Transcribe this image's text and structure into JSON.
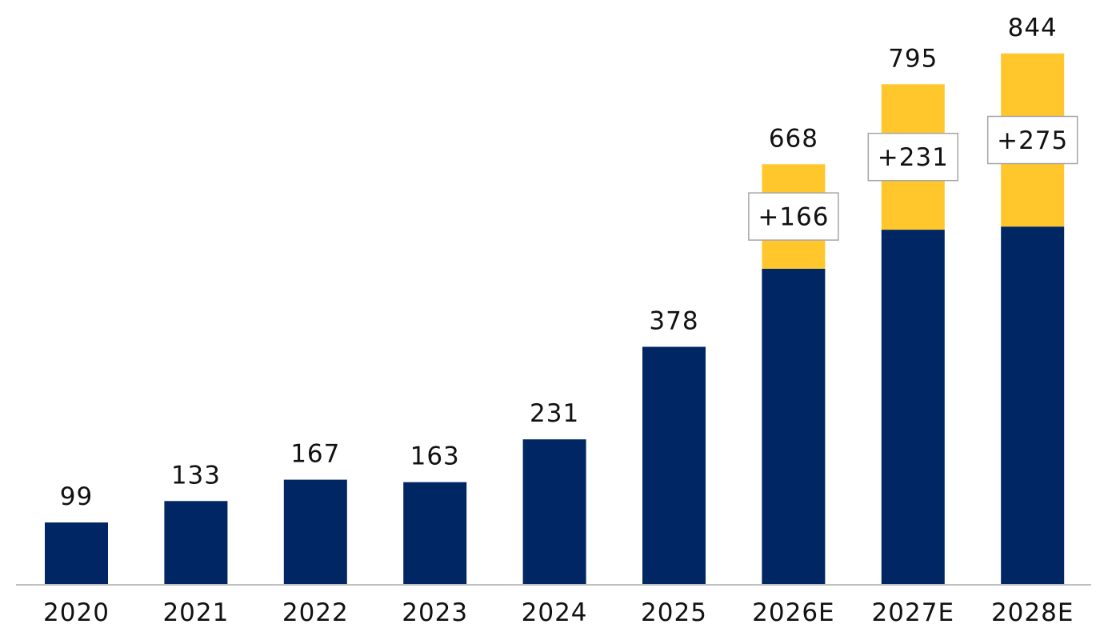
{
  "chart_data": {
    "type": "bar",
    "stacked": true,
    "categories": [
      "2020",
      "2021",
      "2022",
      "2023",
      "2024",
      "2025",
      "2026E",
      "2027E",
      "2028E"
    ],
    "series": [
      {
        "values": [
          99,
          133,
          167,
          163,
          231,
          378,
          502,
          564,
          569
        ],
        "color": "#002663"
      },
      {
        "values": [
          0,
          0,
          0,
          0,
          0,
          0,
          166,
          231,
          275
        ],
        "color": "#FFC72C"
      }
    ],
    "totals": [
      "99",
      "133",
      "167",
      "163",
      "231",
      "378",
      "668",
      "795",
      "844"
    ],
    "increment_labels": [
      "",
      "",
      "",
      "",
      "",
      "",
      "+166",
      "+231",
      "+275"
    ],
    "ylim": [
      0,
      870
    ],
    "grid": false,
    "legend": "none"
  }
}
